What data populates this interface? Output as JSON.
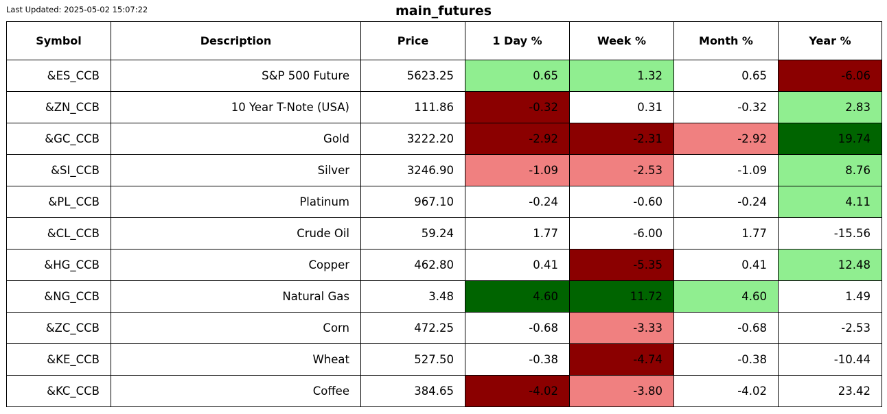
{
  "last_updated": "Last Updated: 2025-05-02 15:07:22",
  "title": "main_futures",
  "colors": {
    "strong_up": "#006400",
    "up": "#90ee90",
    "down": "#f08080",
    "strong_down": "#8b0000",
    "neutral": "#ffffff"
  },
  "chart_data": {
    "type": "table",
    "columns": [
      "Symbol",
      "Description",
      "Price",
      "1 Day %",
      "Week %",
      "Month %",
      "Year %"
    ],
    "rows": [
      {
        "symbol": "&ES_CCB",
        "description": "S&P 500 Future",
        "price": "5623.25",
        "values": [
          "0.65",
          "1.32",
          "0.65",
          "-6.06"
        ],
        "colors": [
          "up",
          "up",
          "neutral",
          "strong_down"
        ]
      },
      {
        "symbol": "&ZN_CCB",
        "description": "10 Year T-Note (USA)",
        "price": "111.86",
        "values": [
          "-0.32",
          "0.31",
          "-0.32",
          "2.83"
        ],
        "colors": [
          "strong_down",
          "neutral",
          "neutral",
          "up"
        ]
      },
      {
        "symbol": "&GC_CCB",
        "description": "Gold",
        "price": "3222.20",
        "values": [
          "-2.92",
          "-2.31",
          "-2.92",
          "19.74"
        ],
        "colors": [
          "strong_down",
          "strong_down",
          "down",
          "strong_up"
        ]
      },
      {
        "symbol": "&SI_CCB",
        "description": "Silver",
        "price": "3246.90",
        "values": [
          "-1.09",
          "-2.53",
          "-1.09",
          "8.76"
        ],
        "colors": [
          "down",
          "down",
          "neutral",
          "up"
        ]
      },
      {
        "symbol": "&PL_CCB",
        "description": "Platinum",
        "price": "967.10",
        "values": [
          "-0.24",
          "-0.60",
          "-0.24",
          "4.11"
        ],
        "colors": [
          "neutral",
          "neutral",
          "neutral",
          "up"
        ]
      },
      {
        "symbol": "&CL_CCB",
        "description": "Crude Oil",
        "price": "59.24",
        "values": [
          "1.77",
          "-6.00",
          "1.77",
          "-15.56"
        ],
        "colors": [
          "neutral",
          "neutral",
          "neutral",
          "neutral"
        ]
      },
      {
        "symbol": "&HG_CCB",
        "description": "Copper",
        "price": "462.80",
        "values": [
          "0.41",
          "-5.35",
          "0.41",
          "12.48"
        ],
        "colors": [
          "neutral",
          "strong_down",
          "neutral",
          "up"
        ]
      },
      {
        "symbol": "&NG_CCB",
        "description": "Natural Gas",
        "price": "3.48",
        "values": [
          "4.60",
          "11.72",
          "4.60",
          "1.49"
        ],
        "colors": [
          "strong_up",
          "strong_up",
          "up",
          "neutral"
        ]
      },
      {
        "symbol": "&ZC_CCB",
        "description": "Corn",
        "price": "472.25",
        "values": [
          "-0.68",
          "-3.33",
          "-0.68",
          "-2.53"
        ],
        "colors": [
          "neutral",
          "down",
          "neutral",
          "neutral"
        ]
      },
      {
        "symbol": "&KE_CCB",
        "description": "Wheat",
        "price": "527.50",
        "values": [
          "-0.38",
          "-4.74",
          "-0.38",
          "-10.44"
        ],
        "colors": [
          "neutral",
          "strong_down",
          "neutral",
          "neutral"
        ]
      },
      {
        "symbol": "&KC_CCB",
        "description": "Coffee",
        "price": "384.65",
        "values": [
          "-4.02",
          "-3.80",
          "-4.02",
          "23.42"
        ],
        "colors": [
          "strong_down",
          "down",
          "neutral",
          "neutral"
        ]
      }
    ]
  }
}
